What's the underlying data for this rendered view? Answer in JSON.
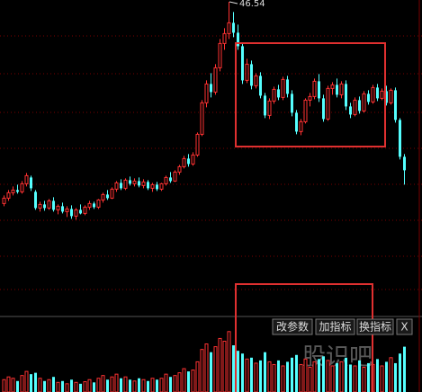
{
  "chart_data": {
    "type": "candlestick",
    "open": [
      24.1,
      24.7,
      25.3,
      25.6,
      25.4,
      26.3,
      27.0,
      25.4,
      23.6,
      24.0,
      23.6,
      24.4,
      23.4,
      23.8,
      23.2,
      23.5,
      22.7,
      23.4,
      23.0,
      23.7,
      24.1,
      23.7,
      24.5,
      25.1,
      24.7,
      25.7,
      26.4,
      25.8,
      26.7,
      26.3,
      26.6,
      26.1,
      26.5,
      25.8,
      26.2,
      25.7,
      26.3,
      27.0,
      26.6,
      27.6,
      28.2,
      29.1,
      28.5,
      29.5,
      31.8,
      35.3,
      37.4,
      36.5,
      39.2,
      41.9,
      43.0,
      44.2,
      43.1,
      41.6,
      37.8,
      39.6,
      37.2,
      38.3,
      36.1,
      33.9,
      35.5,
      36.8,
      35.9,
      37.9,
      36.3,
      34.2,
      32.1,
      33.2,
      35.6,
      36.0,
      37.7,
      35.8,
      33.5,
      36.9,
      37.3,
      36.2,
      37.4,
      34.9,
      34.0,
      35.6,
      34.4,
      36.3,
      35.4,
      37.0,
      35.8,
      36.6,
      35.3,
      36.7,
      33.4,
      29.3
    ],
    "high": [
      25.0,
      25.6,
      26.0,
      26.2,
      26.6,
      27.5,
      27.2,
      25.6,
      24.3,
      24.4,
      24.6,
      24.8,
      24.0,
      24.2,
      23.8,
      23.9,
      23.6,
      24.0,
      23.9,
      24.4,
      24.3,
      24.6,
      25.3,
      25.6,
      25.9,
      26.6,
      26.8,
      26.9,
      27.1,
      26.9,
      27.0,
      26.8,
      26.7,
      26.4,
      26.5,
      26.4,
      27.2,
      27.6,
      27.8,
      28.4,
      29.4,
      29.6,
      29.8,
      32.0,
      35.6,
      37.8,
      38.6,
      39.6,
      42.4,
      43.6,
      46.54,
      45.4,
      44.0,
      41.9,
      40.2,
      40.0,
      38.6,
      38.7,
      36.4,
      35.8,
      37.1,
      37.3,
      38.2,
      38.3,
      36.7,
      34.5,
      33.5,
      35.8,
      36.4,
      38.0,
      38.5,
      36.2,
      37.2,
      37.6,
      38.0,
      37.7,
      37.8,
      35.3,
      35.9,
      36.0,
      36.6,
      36.7,
      37.3,
      37.4,
      36.9,
      37.2,
      36.9,
      37.0,
      33.6,
      29.6
    ],
    "low": [
      23.8,
      24.4,
      25.0,
      25.2,
      25.2,
      26.0,
      25.5,
      23.4,
      23.2,
      23.3,
      23.4,
      23.2,
      22.9,
      23.0,
      22.6,
      22.4,
      22.3,
      22.9,
      22.8,
      23.4,
      23.5,
      23.5,
      24.2,
      24.5,
      24.6,
      25.4,
      25.6,
      25.6,
      26.1,
      26.0,
      25.9,
      25.8,
      25.6,
      25.4,
      25.5,
      25.5,
      26.1,
      26.4,
      26.5,
      27.3,
      28.0,
      28.2,
      28.3,
      29.3,
      31.6,
      34.8,
      35.9,
      36.2,
      38.8,
      41.2,
      42.4,
      42.6,
      41.2,
      37.4,
      37.5,
      36.8,
      36.9,
      35.8,
      33.6,
      33.5,
      35.2,
      35.6,
      35.6,
      35.9,
      33.8,
      31.8,
      31.7,
      33.0,
      34.9,
      35.7,
      35.4,
      33.2,
      33.3,
      36.2,
      35.9,
      35.8,
      34.5,
      33.6,
      33.8,
      34.1,
      34.2,
      35.1,
      35.2,
      35.5,
      35.6,
      35.0,
      35.1,
      33.1,
      29.0,
      26.2
    ],
    "close": [
      24.7,
      25.3,
      25.6,
      25.4,
      26.3,
      27.2,
      25.8,
      23.6,
      24.0,
      23.6,
      24.4,
      23.4,
      23.8,
      23.2,
      23.5,
      22.7,
      23.4,
      23.0,
      23.7,
      24.1,
      23.7,
      24.5,
      25.1,
      24.7,
      25.7,
      26.4,
      25.8,
      26.7,
      26.3,
      26.6,
      26.1,
      26.5,
      25.8,
      26.2,
      25.7,
      26.3,
      27.0,
      26.6,
      27.6,
      28.2,
      29.1,
      28.5,
      29.5,
      31.8,
      35.3,
      37.4,
      36.5,
      39.2,
      41.9,
      43.0,
      44.2,
      43.1,
      41.6,
      37.8,
      39.6,
      37.2,
      38.3,
      36.1,
      33.9,
      35.5,
      36.8,
      35.9,
      37.9,
      36.3,
      34.2,
      32.1,
      33.2,
      35.6,
      36.0,
      37.7,
      35.8,
      33.5,
      36.9,
      37.3,
      36.2,
      37.4,
      34.9,
      34.0,
      35.6,
      34.4,
      36.3,
      35.4,
      37.0,
      35.8,
      36.6,
      35.3,
      36.7,
      33.4,
      29.3,
      27.8
    ],
    "volume": [
      18,
      22,
      20,
      16,
      24,
      30,
      26,
      28,
      20,
      16,
      18,
      22,
      14,
      16,
      12,
      18,
      14,
      12,
      15,
      18,
      14,
      20,
      24,
      18,
      22,
      26,
      20,
      22,
      18,
      16,
      20,
      18,
      16,
      20,
      18,
      20,
      26,
      22,
      24,
      28,
      34,
      30,
      32,
      44,
      62,
      70,
      58,
      66,
      78,
      74,
      88,
      68,
      60,
      56,
      48,
      50,
      42,
      46,
      58,
      44,
      40,
      46,
      38,
      44,
      50,
      54,
      40,
      48,
      36,
      44,
      48,
      52,
      46,
      38,
      42,
      44,
      50,
      40,
      38,
      46,
      36,
      42,
      40,
      48,
      38,
      44,
      50,
      42,
      56,
      66
    ],
    "ylim": [
      11.74,
      46.74
    ],
    "volume_ylim": [
      0,
      110
    ],
    "up_color": "#ff3232",
    "down_color": "#54ffff",
    "grid": true,
    "buttons": [
      "改参数",
      "加指标",
      "换指标",
      "X"
    ],
    "watermark": "股识吧"
  }
}
